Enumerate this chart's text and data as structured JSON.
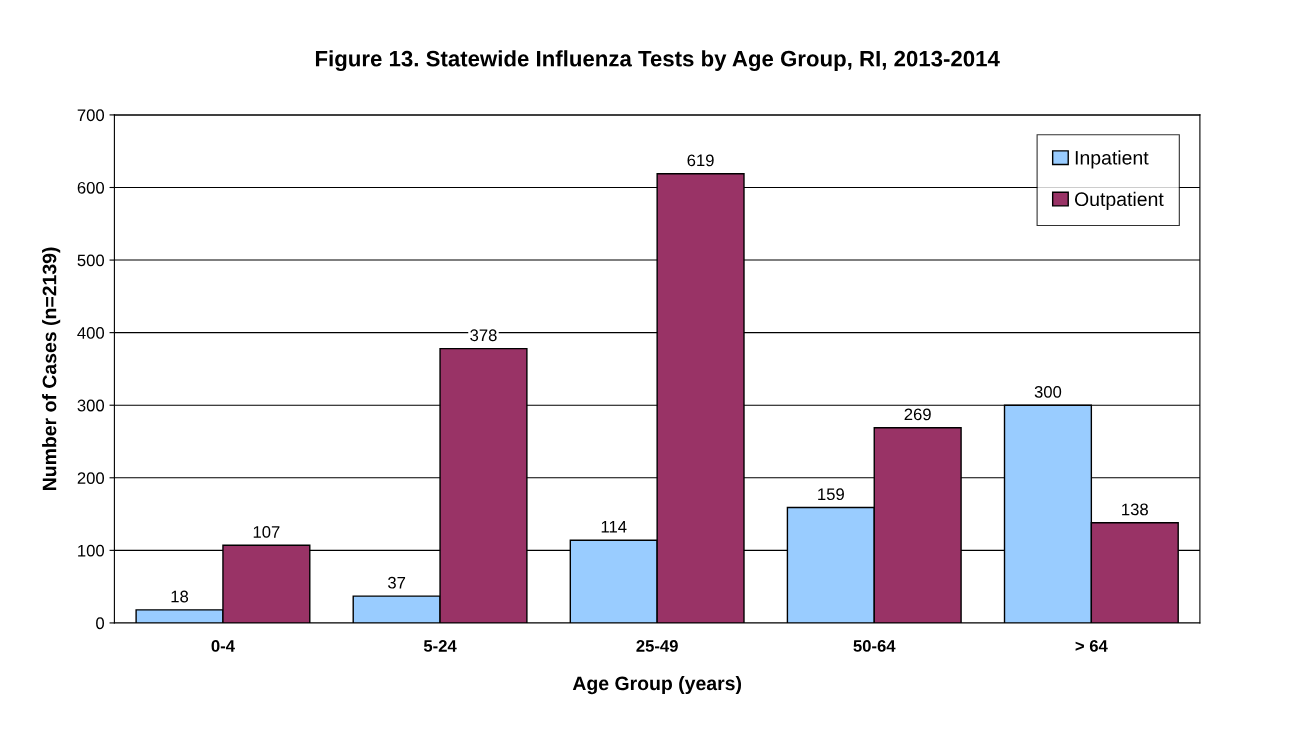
{
  "chart_data": {
    "type": "bar",
    "title": "Figure 13. Statewide Influenza Tests by Age Group, RI, 2013-2014",
    "xlabel": "Age Group (years)",
    "ylabel": "Number of Cases (n=2139)",
    "categories": [
      "0-4",
      "5-24",
      "25-49",
      "50-64",
      "> 64"
    ],
    "series": [
      {
        "name": "Inpatient",
        "color": "#99ccff",
        "values": [
          18,
          37,
          114,
          159,
          300
        ]
      },
      {
        "name": "Outpatient",
        "color": "#993366",
        "values": [
          107,
          378,
          619,
          269,
          138
        ]
      }
    ],
    "ylim": [
      0,
      700
    ],
    "yticks": [
      0,
      100,
      200,
      300,
      400,
      500,
      600,
      700
    ],
    "grid": "y",
    "legend": "top right",
    "data_labels": true
  }
}
